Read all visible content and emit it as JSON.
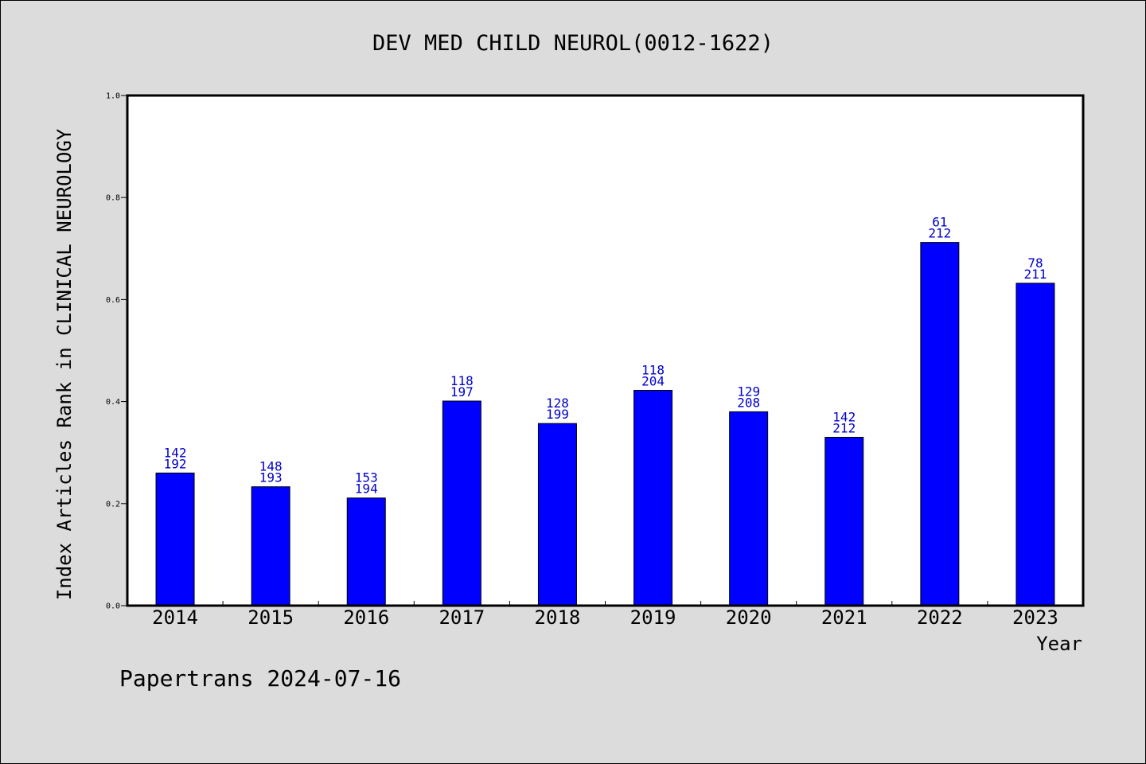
{
  "chart_data": {
    "type": "bar",
    "title": "DEV MED CHILD NEUROL(0012-1622)",
    "ylabel": "Index Articles Rank in CLINICAL NEUROLOGY",
    "xlabel": "Year",
    "ylim": [
      0,
      1.0
    ],
    "yticks": [
      "0.0",
      "0.2",
      "0.4",
      "0.6",
      "0.8",
      "1.0"
    ],
    "categories": [
      "2014",
      "2015",
      "2016",
      "2017",
      "2018",
      "2019",
      "2020",
      "2021",
      "2022",
      "2023"
    ],
    "values": [
      0.26,
      0.233,
      0.211,
      0.401,
      0.357,
      0.422,
      0.38,
      0.33,
      0.712,
      0.632
    ],
    "labels_rank": [
      "142",
      "148",
      "153",
      "118",
      "128",
      "118",
      "129",
      "142",
      "61",
      "78"
    ],
    "labels_total": [
      "192",
      "193",
      "194",
      "197",
      "199",
      "204",
      "208",
      "212",
      "212",
      "211"
    ],
    "grid": false,
    "colors": {
      "bar": "#0000ff",
      "label": "#0000cc",
      "background": "#dcdcdc",
      "plot_background": "#ffffff"
    }
  },
  "footer": "Papertrans 2024-07-16"
}
